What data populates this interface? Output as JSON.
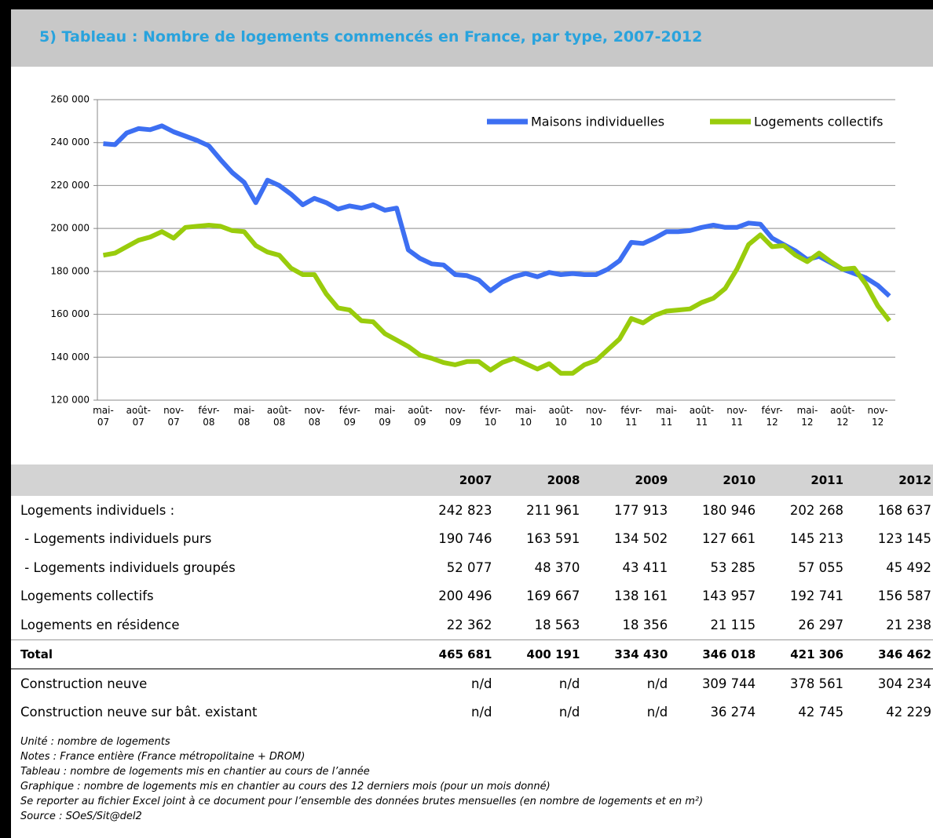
{
  "header": {
    "title": "5)     Tableau : Nombre de logements commencés en France, par type, 2007-2012"
  },
  "chart_data": {
    "type": "line",
    "categories": [
      "mai-07",
      null,
      null,
      "août-07",
      null,
      null,
      "nov-07",
      null,
      null,
      "févr-08",
      null,
      null,
      "mai-08",
      null,
      null,
      "août-08",
      null,
      null,
      "nov-08",
      null,
      null,
      "févr-09",
      null,
      null,
      "mai-09",
      null,
      null,
      "août-09",
      null,
      null,
      "nov-09",
      null,
      null,
      "févr-10",
      null,
      null,
      "mai-10",
      null,
      null,
      "août-10",
      null,
      null,
      "nov-10",
      null,
      null,
      "févr-11",
      null,
      null,
      "mai-11",
      null,
      null,
      "août-11",
      null,
      null,
      "nov-11",
      null,
      null,
      "févr-12",
      null,
      null,
      "mai-12",
      null,
      null,
      "août-12",
      null,
      null,
      "nov-12",
      null
    ],
    "series": [
      {
        "name": "Maisons individuelles",
        "color": "#3d6ff2",
        "values": [
          239500,
          239000,
          244500,
          246500,
          246000,
          247800,
          245000,
          243000,
          241000,
          238500,
          232000,
          226000,
          221500,
          212000,
          222500,
          220000,
          216000,
          211000,
          214000,
          212000,
          209000,
          210500,
          209500,
          211000,
          208500,
          209500,
          190000,
          186000,
          183500,
          183000,
          178500,
          178000,
          176000,
          171000,
          175000,
          177500,
          179000,
          177500,
          179500,
          178500,
          179000,
          178500,
          178500,
          181000,
          185000,
          193500,
          193000,
          195500,
          198500,
          198500,
          199000,
          200500,
          201500,
          200500,
          200500,
          202500,
          202000,
          195500,
          192500,
          189500,
          185500,
          187000,
          184000,
          181000,
          179000,
          177000,
          173500,
          168500
        ]
      },
      {
        "name": "Logements collectifs",
        "color": "#99cc0c",
        "values": [
          187500,
          188500,
          191500,
          194500,
          196000,
          198500,
          195500,
          200500,
          201000,
          201500,
          201000,
          199000,
          198500,
          192000,
          189000,
          187500,
          181500,
          178500,
          178500,
          169500,
          163000,
          162000,
          157000,
          156500,
          151000,
          148000,
          145000,
          141000,
          139500,
          137500,
          136500,
          138000,
          138000,
          134000,
          137500,
          139500,
          137000,
          134500,
          137000,
          132500,
          132500,
          136500,
          138500,
          143500,
          148500,
          158000,
          156000,
          159500,
          161500,
          162000,
          162500,
          165500,
          167500,
          172000,
          181000,
          192500,
          197000,
          191500,
          192000,
          187500,
          184500,
          188500,
          184500,
          181000,
          181500,
          174000,
          164000,
          157000
        ]
      }
    ],
    "ylim": [
      120000,
      260000
    ],
    "yticks": [
      {
        "value": 120000,
        "label": "120 000"
      },
      {
        "value": 140000,
        "label": "140 000"
      },
      {
        "value": 160000,
        "label": "160 000"
      },
      {
        "value": 180000,
        "label": "180 000"
      },
      {
        "value": 200000,
        "label": "200 000"
      },
      {
        "value": 220000,
        "label": "220 000"
      },
      {
        "value": 240000,
        "label": "240 000"
      },
      {
        "value": 260000,
        "label": "260 000"
      }
    ],
    "grid": true,
    "legend": "top-right"
  },
  "table": {
    "columns": [
      "2007",
      "2008",
      "2009",
      "2010",
      "2011",
      "2012"
    ],
    "rows": [
      {
        "label": "Logements individuels :",
        "cells": [
          "242 823",
          "211 961",
          "177 913",
          "180 946",
          "202 268",
          "168 637"
        ]
      },
      {
        "label": " - Logements individuels purs",
        "cells": [
          "190 746",
          "163 591",
          "134 502",
          "127 661",
          "145 213",
          "123 145"
        ]
      },
      {
        "label": " - Logements individuels groupés",
        "cells": [
          "52 077",
          "48 370",
          "43 411",
          "53 285",
          "57 055",
          "45 492"
        ]
      },
      {
        "label": "Logements collectifs",
        "cells": [
          "200 496",
          "169 667",
          "138 161",
          "143 957",
          "192 741",
          "156 587"
        ]
      },
      {
        "label": "Logements en résidence",
        "cells": [
          "22 362",
          "18 563",
          "18 356",
          "21 115",
          "26 297",
          "21 238"
        ]
      },
      {
        "label": "Total",
        "cells": [
          "465 681",
          "400 191",
          "334 430",
          "346 018",
          "421 306",
          "346 462"
        ]
      },
      {
        "label": "Construction neuve",
        "cells": [
          "n/d",
          "n/d",
          "n/d",
          "309 744",
          "378 561",
          "304 234"
        ]
      },
      {
        "label": "Construction neuve sur bât. existant",
        "cells": [
          "n/d",
          "n/d",
          "n/d",
          "36 274",
          "42 745",
          "42 229"
        ]
      }
    ]
  },
  "notes": [
    "Unité : nombre de logements",
    "Notes : France entière (France métropolitaine + DROM)",
    "Tableau : nombre de logements mis en chantier au cours de l’année",
    "Graphique : nombre de logements mis en chantier au cours des 12 derniers mois (pour un mois donné)",
    "Se reporter au fichier Excel joint à ce document pour l’ensemble des données brutes mensuelles (en nombre de logements et en m²)",
    "Source : SOeS/Sit@del2"
  ]
}
